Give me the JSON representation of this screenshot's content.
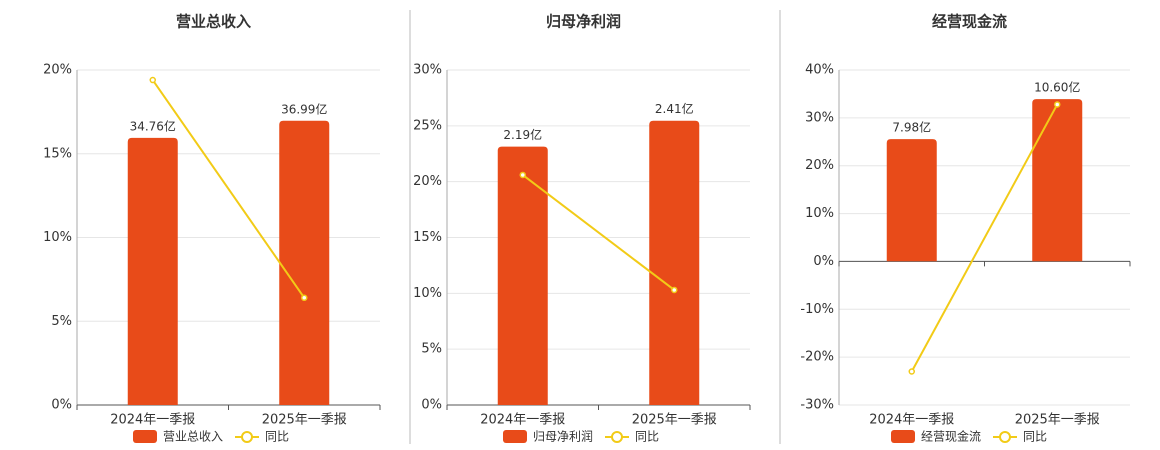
{
  "chart_data": [
    {
      "type": "bar",
      "title": "营业总收入",
      "categories": [
        "2024年一季报",
        "2025年一季报"
      ],
      "series": [
        {
          "name": "营业总收入",
          "color": "#e84b19",
          "axis": "y2",
          "values": [
            34.76,
            36.99
          ],
          "value_labels": [
            "34.76亿",
            "36.99亿"
          ]
        },
        {
          "name": "同比",
          "color": "#f2cb17",
          "type": "line",
          "values": [
            19.4,
            6.4
          ]
        }
      ],
      "ylim": [
        0,
        20
      ],
      "yticks": [
        {
          "value": 0,
          "label": "0%"
        },
        {
          "value": 5,
          "label": "5%"
        },
        {
          "value": 10,
          "label": "10%"
        },
        {
          "value": 15,
          "label": "15%"
        },
        {
          "value": 20,
          "label": "20%"
        }
      ],
      "y2lim": [
        0,
        43.6
      ],
      "grid": true,
      "legend": "bottom"
    },
    {
      "type": "bar",
      "title": "归母净利润",
      "categories": [
        "2024年一季报",
        "2025年一季报"
      ],
      "series": [
        {
          "name": "归母净利润",
          "color": "#e84b19",
          "axis": "y2",
          "values": [
            2.19,
            2.41
          ],
          "value_labels": [
            "2.19亿",
            "2.41亿"
          ]
        },
        {
          "name": "同比",
          "color": "#f2cb17",
          "type": "line",
          "values": [
            20.6,
            10.3
          ]
        }
      ],
      "ylim": [
        0,
        30
      ],
      "yticks": [
        {
          "value": 0,
          "label": "0%"
        },
        {
          "value": 5,
          "label": "5%"
        },
        {
          "value": 10,
          "label": "10%"
        },
        {
          "value": 15,
          "label": "15%"
        },
        {
          "value": 20,
          "label": "20%"
        },
        {
          "value": 25,
          "label": "25%"
        },
        {
          "value": 30,
          "label": "30%"
        }
      ],
      "y2lim": [
        0,
        2.84
      ],
      "grid": true,
      "legend": "bottom"
    },
    {
      "type": "bar",
      "title": "经营现金流",
      "categories": [
        "2024年一季报",
        "2025年一季报"
      ],
      "series": [
        {
          "name": "经营现金流",
          "color": "#e84b19",
          "axis": "y2",
          "values": [
            7.98,
            10.6
          ],
          "value_labels": [
            "7.98亿",
            "10.60亿"
          ]
        },
        {
          "name": "同比",
          "color": "#f2cb17",
          "type": "line",
          "values": [
            -23.0,
            32.8
          ]
        }
      ],
      "ylim": [
        -30,
        40
      ],
      "yticks": [
        {
          "value": -30,
          "label": "-30%"
        },
        {
          "value": -20,
          "label": "-20%"
        },
        {
          "value": -10,
          "label": "-10%"
        },
        {
          "value": 0,
          "label": "0%"
        },
        {
          "value": 10,
          "label": "10%"
        },
        {
          "value": 20,
          "label": "20%"
        },
        {
          "value": 30,
          "label": "30%"
        },
        {
          "value": 40,
          "label": "40%"
        }
      ],
      "y2lim": [
        -9.4,
        12.5
      ],
      "grid": true,
      "legend": "bottom"
    }
  ]
}
